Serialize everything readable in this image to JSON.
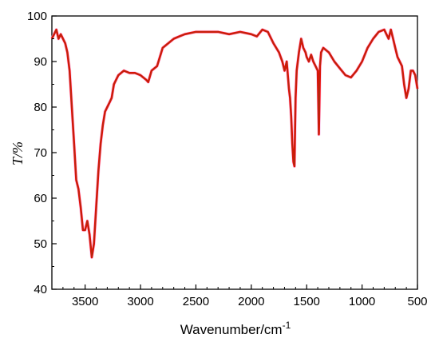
{
  "chart_data": {
    "type": "line",
    "title": "",
    "xlabel": "Wavenumber/cm",
    "xlabel_superscript": "-1",
    "ylabel": "T/%",
    "xlim": [
      3800,
      500
    ],
    "ylim": [
      40,
      100
    ],
    "x_reversed": true,
    "grid": false,
    "legend": "none",
    "x_ticks": [
      3500,
      3000,
      2500,
      2000,
      1500,
      1000,
      500
    ],
    "y_ticks": [
      40,
      50,
      60,
      70,
      80,
      90,
      100
    ],
    "series": [
      {
        "color": "#b22a10",
        "highlight_color": "#ff0000",
        "x": [
          3800,
          3780,
          3760,
          3740,
          3720,
          3700,
          3680,
          3660,
          3640,
          3620,
          3600,
          3580,
          3560,
          3540,
          3520,
          3500,
          3480,
          3460,
          3440,
          3420,
          3400,
          3380,
          3360,
          3340,
          3320,
          3300,
          3280,
          3260,
          3240,
          3200,
          3150,
          3100,
          3050,
          3000,
          2950,
          2930,
          2900,
          2850,
          2800,
          2750,
          2700,
          2650,
          2600,
          2500,
          2400,
          2300,
          2200,
          2100,
          2000,
          1950,
          1900,
          1850,
          1800,
          1750,
          1720,
          1700,
          1680,
          1660,
          1650,
          1640,
          1630,
          1620,
          1610,
          1600,
          1590,
          1570,
          1550,
          1530,
          1510,
          1500,
          1480,
          1460,
          1440,
          1420,
          1400,
          1390,
          1380,
          1370,
          1350,
          1300,
          1250,
          1200,
          1150,
          1100,
          1050,
          1000,
          950,
          900,
          850,
          800,
          780,
          760,
          740,
          720,
          700,
          680,
          660,
          640,
          620,
          600,
          580,
          560,
          540,
          520,
          500
        ],
        "y": [
          95,
          96,
          97,
          95,
          96,
          95,
          94,
          92,
          88,
          80,
          72,
          64,
          62,
          58,
          53,
          53,
          55,
          52,
          47,
          50,
          58,
          66,
          72,
          76,
          79,
          80,
          81,
          82,
          85,
          87,
          88,
          87.5,
          87.5,
          87,
          86,
          85.5,
          88,
          89,
          93,
          94,
          95,
          95.5,
          96,
          96.5,
          96.5,
          96.5,
          96,
          96.5,
          96,
          95.5,
          97,
          96.5,
          94,
          92,
          90,
          88,
          90,
          84,
          82,
          78,
          72,
          68,
          67,
          82,
          88,
          92,
          95,
          93,
          92,
          91,
          90,
          91.5,
          90,
          89,
          88,
          74,
          89,
          92,
          93,
          92,
          90,
          88.5,
          87,
          86.5,
          88,
          90,
          93,
          95,
          96.5,
          97,
          96,
          95,
          97,
          95,
          93,
          91,
          90,
          89,
          85,
          82,
          84,
          88,
          88,
          87,
          84
        ]
      }
    ]
  }
}
